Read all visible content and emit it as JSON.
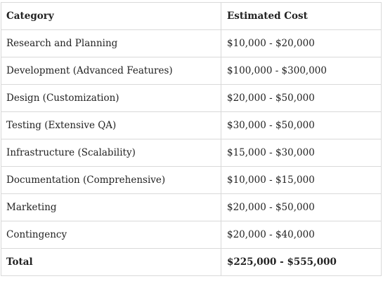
{
  "table": {
    "headers": [
      "Category",
      "Estimated Cost"
    ],
    "rows": [
      {
        "category": "Research and Planning",
        "cost": "$10,000 - $20,000"
      },
      {
        "category": "Development (Advanced Features)",
        "cost": "$100,000 - $300,000"
      },
      {
        "category": "Design (Customization)",
        "cost": "$20,000 - $50,000"
      },
      {
        "category": "Testing (Extensive QA)",
        "cost": "$30,000 - $50,000"
      },
      {
        "category": "Infrastructure (Scalability)",
        "cost": "$15,000 - $30,000"
      },
      {
        "category": "Documentation (Comprehensive)",
        "cost": "$10,000 - $15,000"
      },
      {
        "category": "Marketing",
        "cost": "$20,000 - $50,000"
      },
      {
        "category": "Contingency",
        "cost": "$20,000 - $40,000"
      }
    ],
    "total": {
      "category": "Total",
      "cost": "$225,000 - $555,000"
    }
  },
  "colors": {
    "border": "#d9d9d9",
    "text": "#222222"
  }
}
